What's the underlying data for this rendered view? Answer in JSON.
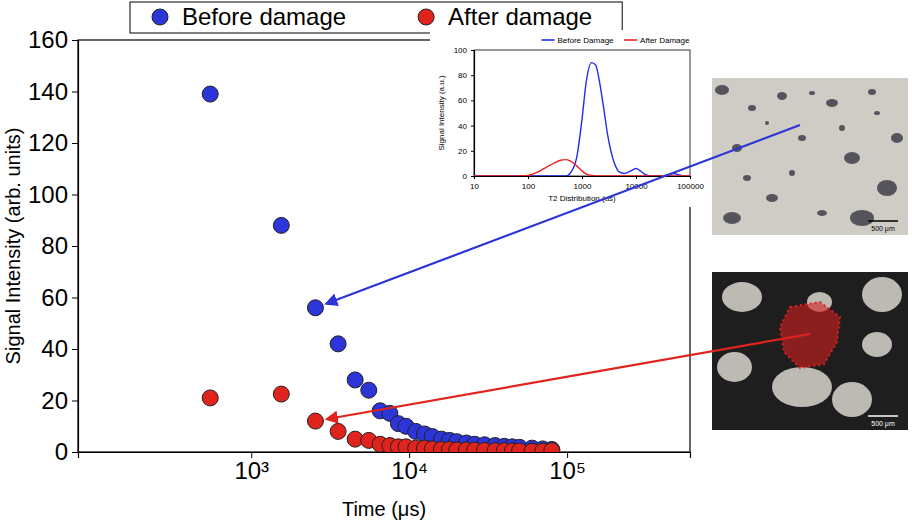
{
  "chart_data": [
    {
      "type": "scatter",
      "xlabel": "Time (μs)",
      "ylabel": "Signal Intensity (arb. units)",
      "x": [
        550,
        1550,
        2550,
        3550,
        4550,
        5550,
        6550,
        7550,
        8550,
        9550,
        11000,
        12500,
        14000,
        16000,
        18000,
        20000,
        23000,
        26000,
        30000,
        35000,
        40000,
        45000,
        50000,
        60000,
        70000,
        80000
      ],
      "series": [
        {
          "name": "Before damage",
          "color": "#2b35d8",
          "values": [
            139,
            88,
            56,
            42,
            28,
            24,
            16,
            15,
            11,
            10,
            8,
            7,
            6,
            5,
            4.5,
            4,
            3.5,
            3,
            2.8,
            2.5,
            2.2,
            2,
            1.8,
            1.5,
            1.2,
            1
          ]
        },
        {
          "name": "After damage",
          "color": "#e0231c",
          "values": [
            21,
            22.5,
            12,
            8,
            5,
            4.5,
            3,
            2.5,
            2,
            2,
            1.5,
            1.5,
            1.2,
            1,
            1,
            0.8,
            0.8,
            0.7,
            0.6,
            0.5,
            0.5,
            0.4,
            0.4,
            0.3,
            0.3,
            0.5
          ]
        }
      ],
      "xlim": [
        80,
        600000
      ],
      "ylim": [
        0,
        160
      ],
      "xticks": [
        {
          "value": 1000,
          "label": "10³"
        },
        {
          "value": 10000,
          "label": "10⁴"
        },
        {
          "value": 100000,
          "label": "10⁵"
        }
      ],
      "yticks": [
        0,
        20,
        40,
        60,
        80,
        100,
        120,
        140,
        160
      ],
      "log": "x",
      "grid": false,
      "legend": "top",
      "marker": "circle",
      "annotations": [
        "500 μm",
        "500 μm"
      ]
    },
    {
      "type": "line",
      "xlabel": "T2 Distribution (us)",
      "ylabel": "Signal Intensity (a.u.)",
      "x": [
        10,
        20,
        50,
        100,
        150,
        200,
        300,
        400,
        500,
        600,
        800,
        1000,
        1200,
        1500,
        1800,
        2000,
        2500,
        3000,
        4000,
        5000,
        6000,
        8000,
        10000,
        12000,
        15000,
        20000,
        30000,
        40000,
        50000,
        60000,
        80000,
        100000
      ],
      "series": [
        {
          "name": "Before Damage",
          "color": "#1f2ee8",
          "values": [
            0,
            0,
            0,
            0,
            0,
            0,
            0,
            0,
            0,
            2,
            15,
            45,
            75,
            90,
            88,
            80,
            55,
            32,
            10,
            3,
            2,
            4,
            6,
            4,
            1,
            0,
            0,
            1,
            2,
            1,
            0,
            0
          ]
        },
        {
          "name": "After Damage",
          "color": "#ee2020",
          "values": [
            0,
            0,
            0,
            0.5,
            3,
            6,
            10,
            12.5,
            13,
            12,
            8,
            4,
            1.5,
            0.5,
            0,
            0,
            0,
            0,
            0,
            0,
            0,
            0,
            0,
            0,
            0,
            0,
            0,
            0,
            0,
            0,
            0,
            0
          ]
        }
      ],
      "xlim": [
        10,
        100000
      ],
      "ylim": [
        0,
        100
      ],
      "xticks": [
        10,
        100,
        1000,
        10000,
        100000
      ],
      "yticks": [
        0,
        20,
        40,
        60,
        80,
        100
      ],
      "log": "x",
      "grid": false,
      "legend": "top"
    }
  ]
}
